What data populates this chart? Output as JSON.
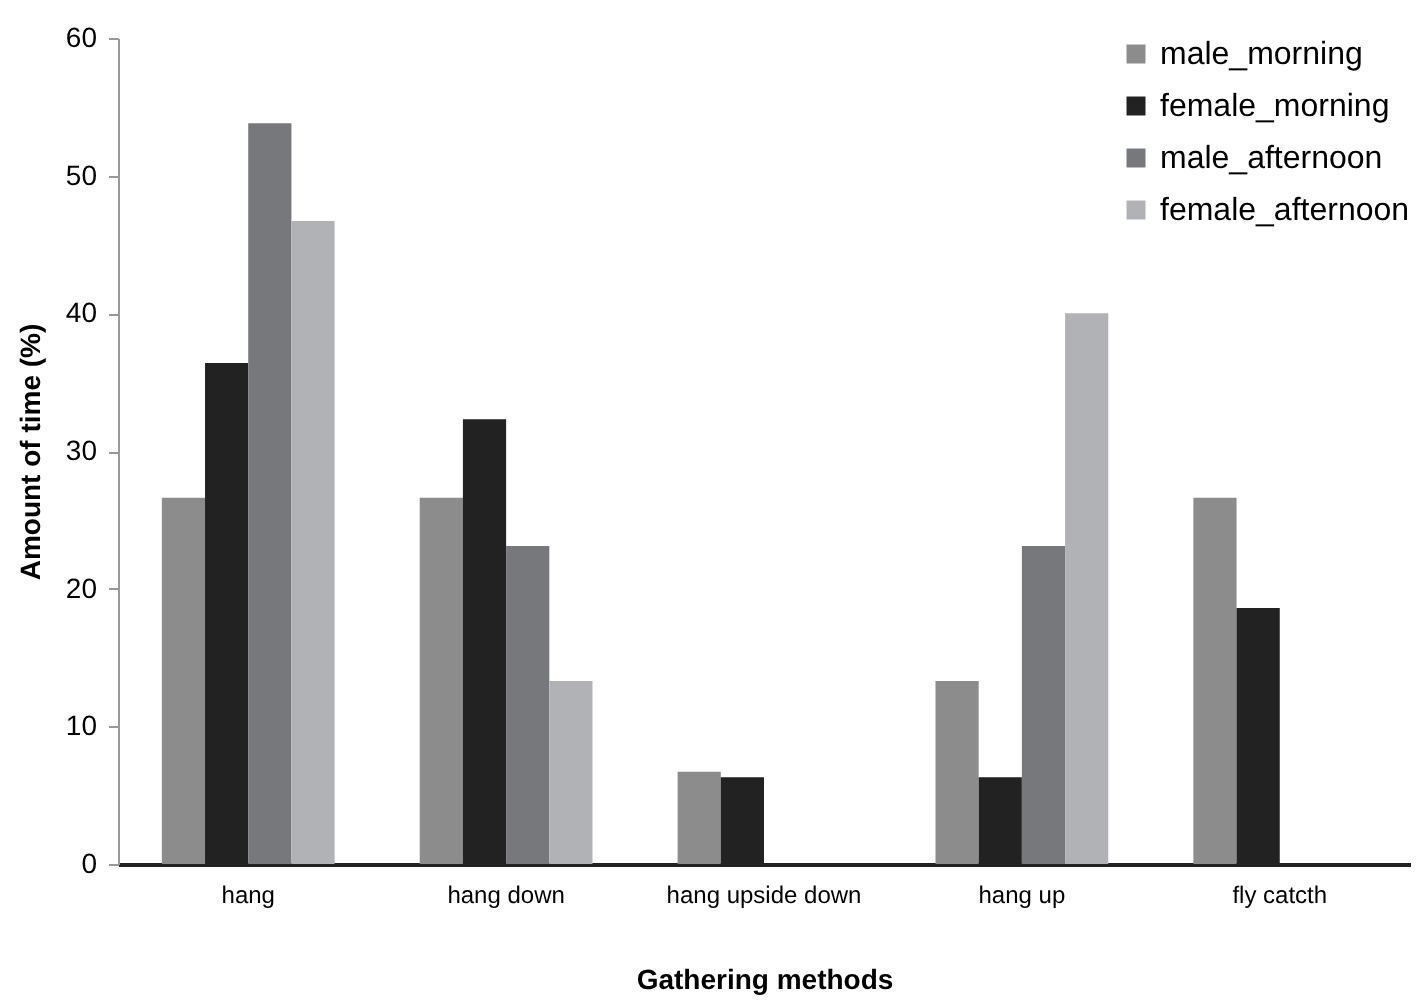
{
  "chart_data": {
    "type": "bar",
    "xlabel": "Gathering methods",
    "ylabel": "Amount of time (%)",
    "categories": [
      "hang",
      "hang down",
      "hang upside down",
      "hang up",
      "fly catcth"
    ],
    "series": [
      {
        "name": "male_morning",
        "color": "#8c8c8c",
        "values": [
          26.6,
          26.6,
          6.7,
          13.3,
          26.6
        ]
      },
      {
        "name": "female_morning",
        "color": "#222222",
        "values": [
          36.4,
          32.3,
          6.3,
          6.3,
          18.6
        ]
      },
      {
        "name": "male_afternoon",
        "color": "#77787c",
        "values": [
          53.8,
          23.1,
          0,
          23.1,
          0
        ]
      },
      {
        "name": "female_afternoon",
        "color": "#b1b2b6",
        "values": [
          46.7,
          13.3,
          0,
          40.0,
          0
        ]
      }
    ],
    "ylim": [
      0,
      60
    ],
    "yticks": [
      0,
      10,
      20,
      30,
      40,
      50,
      60
    ],
    "grid": false,
    "legend": "top right"
  }
}
